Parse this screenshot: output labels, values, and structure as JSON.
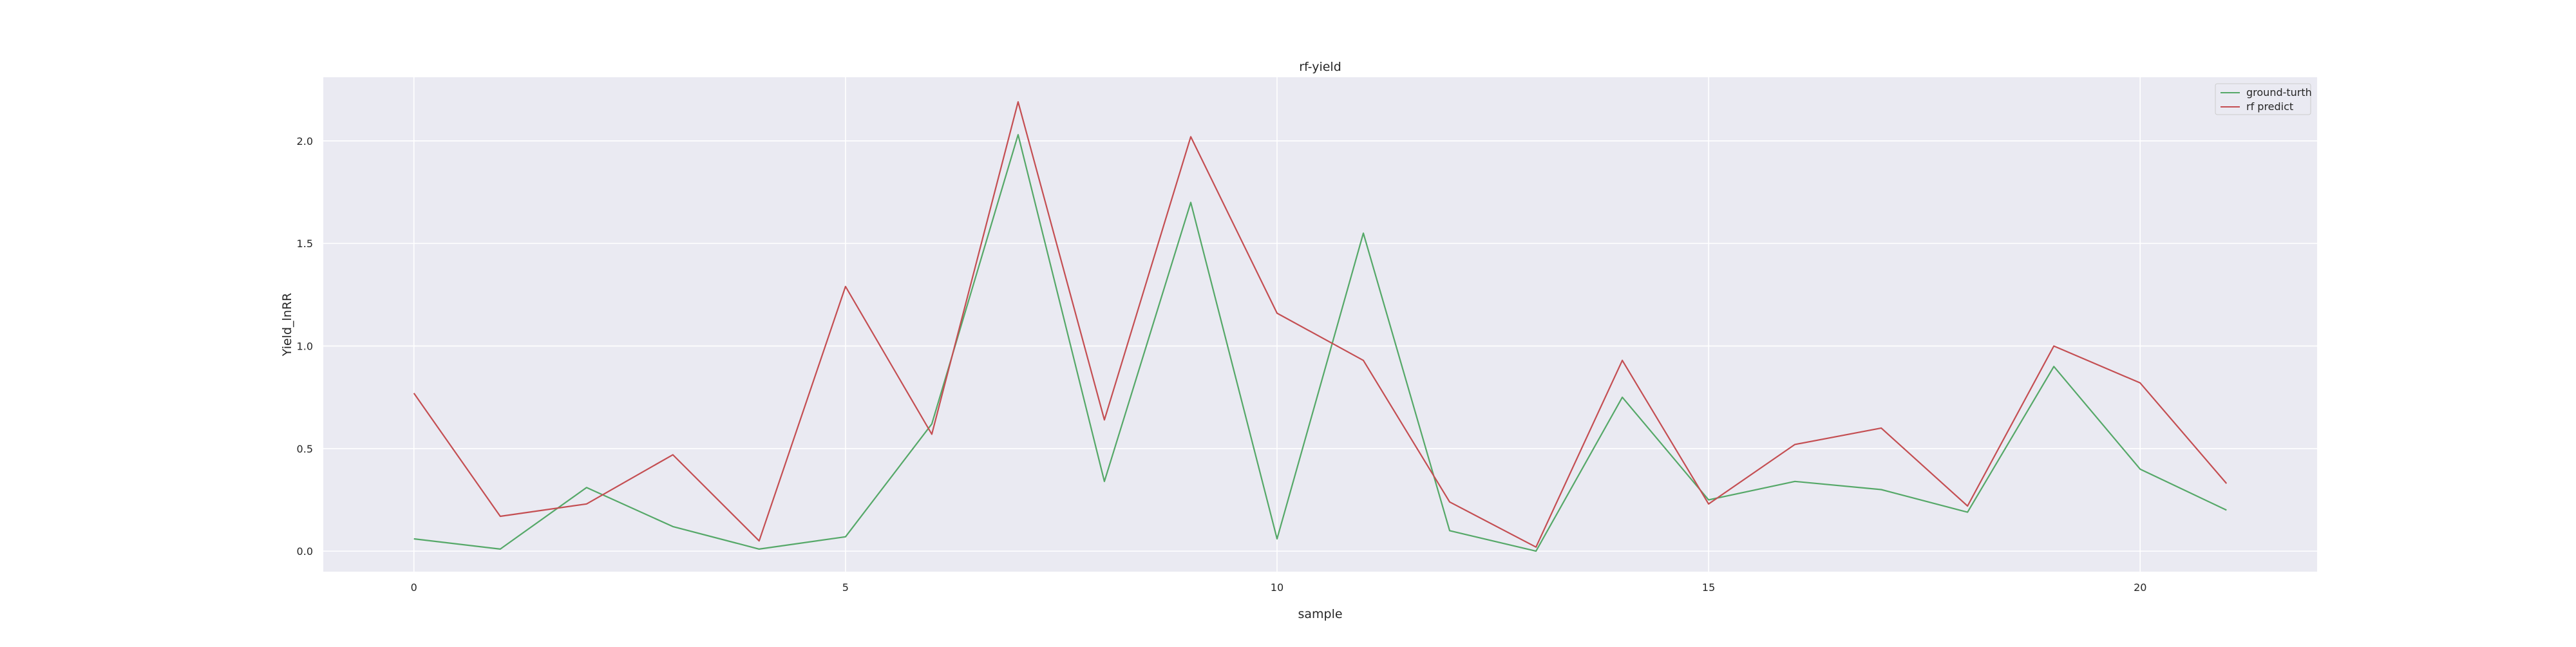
{
  "chart_data": {
    "type": "line",
    "title": "rf-yield",
    "xlabel": "sample",
    "ylabel": "Yield_lnRR",
    "x": [
      0,
      1,
      2,
      3,
      4,
      5,
      6,
      7,
      8,
      9,
      10,
      11,
      12,
      13,
      14,
      15,
      16,
      17,
      18,
      19,
      20,
      21
    ],
    "xlim": [
      -1.05,
      22.05
    ],
    "ylim": [
      -0.1,
      2.31
    ],
    "xticks": [
      0,
      5,
      10,
      15,
      20
    ],
    "yticks": [
      0.0,
      0.5,
      1.0,
      1.5,
      2.0
    ],
    "xtick_labels": [
      "0",
      "5",
      "10",
      "15",
      "20"
    ],
    "ytick_labels": [
      "0.0",
      "0.5",
      "1.0",
      "1.5",
      "2.0"
    ],
    "grid": true,
    "legend_position": "top-right",
    "series": [
      {
        "name": "ground-turth",
        "color": "#55a868",
        "values": [
          0.06,
          0.01,
          0.31,
          0.12,
          0.01,
          0.07,
          0.62,
          2.03,
          0.34,
          1.7,
          0.06,
          1.55,
          0.1,
          0.0,
          0.75,
          0.25,
          0.34,
          0.3,
          0.19,
          0.9,
          0.4,
          0.2
        ]
      },
      {
        "name": "rf predict",
        "color": "#c44e52",
        "values": [
          0.77,
          0.17,
          0.23,
          0.47,
          0.05,
          1.29,
          0.57,
          2.19,
          0.64,
          2.02,
          1.16,
          0.93,
          0.24,
          0.02,
          0.93,
          0.23,
          0.52,
          0.6,
          0.22,
          1.0,
          0.82,
          0.33
        ]
      }
    ]
  }
}
